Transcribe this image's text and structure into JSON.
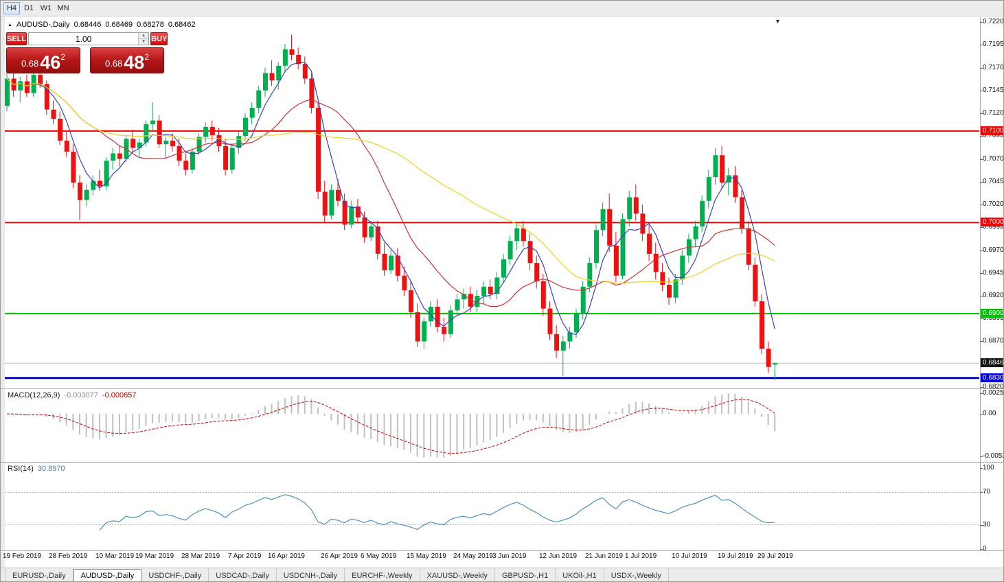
{
  "toolbar": {
    "periods": [
      {
        "label": "H4",
        "active": true
      },
      {
        "label": "D1",
        "active": false
      },
      {
        "label": "W1",
        "active": false
      },
      {
        "label": "MN",
        "active": false
      }
    ]
  },
  "icons": {
    "title_bullet": "▲",
    "spinner_up": "▲",
    "spinner_down": "▼",
    "shift_marker": "▼"
  },
  "chart_header": {
    "symbol": "AUDUSD-,Daily",
    "open": "0.68446",
    "high": "0.68469",
    "low": "0.68278",
    "close": "0.68462"
  },
  "trade_panel": {
    "sell_label": "SELL",
    "buy_label": "BUY",
    "volume": "1.00",
    "sell_price": {
      "prefix": "0.68",
      "big": "46",
      "sup": "2"
    },
    "buy_price": {
      "prefix": "0.68",
      "big": "48",
      "sup": "2"
    }
  },
  "chart_data": {
    "type": "candlestick",
    "title": "AUDUSD-,Daily",
    "colors": {
      "up": "#00b050",
      "down": "#ee1111",
      "bid_line": "#c0c0c0",
      "macd_hist": "#c0c0c0",
      "macd_signal": "#cc0000",
      "rsi_line": "#4a90c2",
      "level_dotted": "#b0b0b0"
    },
    "y_axis": {
      "top_price": 0.722,
      "bottom_price": 0.682,
      "tick_step": 0.0025,
      "ticks": [
        "0.72200",
        "0.71950",
        "0.71700",
        "0.71450",
        "0.71200",
        "0.70950",
        "0.70700",
        "0.70450",
        "0.70200",
        "0.69950",
        "0.69700",
        "0.69450",
        "0.69200",
        "0.68950",
        "0.68700",
        "0.68200"
      ]
    },
    "x_labels": [
      {
        "text": "19 Feb 2019",
        "i": 0
      },
      {
        "text": "28 Feb 2019",
        "i": 7
      },
      {
        "text": "10 Mar 2019",
        "i": 14
      },
      {
        "text": "19 Mar 2019",
        "i": 20
      },
      {
        "text": "28 Mar 2019",
        "i": 27
      },
      {
        "text": "7 Apr 2019",
        "i": 34
      },
      {
        "text": "16 Apr 2019",
        "i": 40
      },
      {
        "text": "26 Apr 2019",
        "i": 48
      },
      {
        "text": "6 May 2019",
        "i": 54
      },
      {
        "text": "15 May 2019",
        "i": 61
      },
      {
        "text": "24 May 2019",
        "i": 68
      },
      {
        "text": "3 Jun 2019",
        "i": 74
      },
      {
        "text": "12 Jun 2019",
        "i": 81
      },
      {
        "text": "21 Jun 2019",
        "i": 88
      },
      {
        "text": "1 Jul 2019",
        "i": 94
      },
      {
        "text": "10 Jul 2019",
        "i": 101
      },
      {
        "text": "19 Jul 2019",
        "i": 108
      },
      {
        "text": "29 Jul 2019",
        "i": 114
      }
    ],
    "candles": [
      [
        0.7128,
        0.7165,
        0.7122,
        0.7158
      ],
      [
        0.7158,
        0.7168,
        0.7138,
        0.7145
      ],
      [
        0.7145,
        0.716,
        0.7132,
        0.7155
      ],
      [
        0.7155,
        0.7162,
        0.7138,
        0.7142
      ],
      [
        0.7142,
        0.7166,
        0.7138,
        0.7162
      ],
      [
        0.7162,
        0.7168,
        0.7148,
        0.7152
      ],
      [
        0.7152,
        0.7156,
        0.7118,
        0.7124
      ],
      [
        0.7124,
        0.7134,
        0.7108,
        0.7114
      ],
      [
        0.7114,
        0.7122,
        0.7085,
        0.709
      ],
      [
        0.709,
        0.71,
        0.7072,
        0.7078
      ],
      [
        0.7078,
        0.7086,
        0.7038,
        0.7044
      ],
      [
        0.7044,
        0.7052,
        0.7003,
        0.7025
      ],
      [
        0.7025,
        0.7042,
        0.7018,
        0.7036
      ],
      [
        0.7036,
        0.7052,
        0.703,
        0.7046
      ],
      [
        0.7046,
        0.7058,
        0.7035,
        0.704
      ],
      [
        0.704,
        0.7072,
        0.7036,
        0.7068
      ],
      [
        0.7068,
        0.7082,
        0.7058,
        0.7076
      ],
      [
        0.7076,
        0.7084,
        0.7062,
        0.707
      ],
      [
        0.707,
        0.7096,
        0.7066,
        0.7092
      ],
      [
        0.7092,
        0.7102,
        0.7076,
        0.7082
      ],
      [
        0.7082,
        0.7092,
        0.7072,
        0.7088
      ],
      [
        0.7088,
        0.7112,
        0.7084,
        0.7108
      ],
      [
        0.7108,
        0.7132,
        0.71,
        0.7112
      ],
      [
        0.7112,
        0.7118,
        0.7082,
        0.7086
      ],
      [
        0.7086,
        0.7094,
        0.707,
        0.709
      ],
      [
        0.709,
        0.7098,
        0.7078,
        0.7084
      ],
      [
        0.7084,
        0.7092,
        0.7062,
        0.7068
      ],
      [
        0.7068,
        0.7076,
        0.7052,
        0.7058
      ],
      [
        0.7058,
        0.7082,
        0.7054,
        0.7078
      ],
      [
        0.7078,
        0.7098,
        0.7074,
        0.7094
      ],
      [
        0.7094,
        0.711,
        0.7088,
        0.7105
      ],
      [
        0.7105,
        0.7112,
        0.709,
        0.7096
      ],
      [
        0.7096,
        0.7104,
        0.7078,
        0.7084
      ],
      [
        0.7084,
        0.7092,
        0.7052,
        0.7058
      ],
      [
        0.7058,
        0.7086,
        0.7054,
        0.7082
      ],
      [
        0.7082,
        0.71,
        0.7076,
        0.7095
      ],
      [
        0.7095,
        0.712,
        0.709,
        0.7115
      ],
      [
        0.7115,
        0.7132,
        0.7108,
        0.7126
      ],
      [
        0.7126,
        0.715,
        0.712,
        0.7145
      ],
      [
        0.7145,
        0.717,
        0.7138,
        0.7164
      ],
      [
        0.7164,
        0.7178,
        0.715,
        0.7156
      ],
      [
        0.7156,
        0.7176,
        0.7146,
        0.7172
      ],
      [
        0.7172,
        0.7196,
        0.7165,
        0.719
      ],
      [
        0.719,
        0.7206,
        0.7178,
        0.7184
      ],
      [
        0.7184,
        0.7192,
        0.7168,
        0.7174
      ],
      [
        0.7174,
        0.7182,
        0.7152,
        0.7158
      ],
      [
        0.7158,
        0.7164,
        0.712,
        0.7126
      ],
      [
        0.7126,
        0.7132,
        0.7026,
        0.7034
      ],
      [
        0.7034,
        0.7046,
        0.7,
        0.7008
      ],
      [
        0.7008,
        0.7042,
        0.7004,
        0.7036
      ],
      [
        0.7036,
        0.7048,
        0.7018,
        0.7024
      ],
      [
        0.7024,
        0.7032,
        0.6992,
        0.6998
      ],
      [
        0.6998,
        0.7024,
        0.6994,
        0.7018
      ],
      [
        0.7018,
        0.7026,
        0.7,
        0.7006
      ],
      [
        0.7006,
        0.7012,
        0.6978,
        0.6984
      ],
      [
        0.6984,
        0.7002,
        0.698,
        0.6996
      ],
      [
        0.6996,
        0.7002,
        0.696,
        0.6966
      ],
      [
        0.6966,
        0.6978,
        0.6942,
        0.6948
      ],
      [
        0.6948,
        0.697,
        0.6944,
        0.6964
      ],
      [
        0.6964,
        0.6972,
        0.6936,
        0.6942
      ],
      [
        0.6942,
        0.6952,
        0.692,
        0.6926
      ],
      [
        0.6926,
        0.6936,
        0.6896,
        0.6902
      ],
      [
        0.6902,
        0.6912,
        0.6864,
        0.687
      ],
      [
        0.687,
        0.6896,
        0.6862,
        0.6892
      ],
      [
        0.6892,
        0.6914,
        0.6886,
        0.6908
      ],
      [
        0.6908,
        0.6916,
        0.688,
        0.6886
      ],
      [
        0.6886,
        0.6896,
        0.687,
        0.6878
      ],
      [
        0.6878,
        0.691,
        0.6874,
        0.6904
      ],
      [
        0.6904,
        0.6922,
        0.6898,
        0.6916
      ],
      [
        0.6916,
        0.6928,
        0.6906,
        0.6922
      ],
      [
        0.6922,
        0.693,
        0.6902,
        0.6908
      ],
      [
        0.6908,
        0.6926,
        0.6902,
        0.692
      ],
      [
        0.692,
        0.6936,
        0.6912,
        0.693
      ],
      [
        0.693,
        0.6938,
        0.6916,
        0.6922
      ],
      [
        0.6922,
        0.6946,
        0.6916,
        0.694
      ],
      [
        0.694,
        0.6966,
        0.6934,
        0.696
      ],
      [
        0.696,
        0.6986,
        0.6954,
        0.698
      ],
      [
        0.698,
        0.7,
        0.697,
        0.6994
      ],
      [
        0.6994,
        0.7002,
        0.6974,
        0.698
      ],
      [
        0.698,
        0.6988,
        0.6948,
        0.6956
      ],
      [
        0.6956,
        0.6964,
        0.6928,
        0.6936
      ],
      [
        0.6936,
        0.6944,
        0.6898,
        0.6906
      ],
      [
        0.6906,
        0.6914,
        0.6872,
        0.6878
      ],
      [
        0.6878,
        0.6888,
        0.6852,
        0.686
      ],
      [
        0.686,
        0.6876,
        0.6832,
        0.687
      ],
      [
        0.687,
        0.6886,
        0.6862,
        0.688
      ],
      [
        0.688,
        0.6906,
        0.6874,
        0.69
      ],
      [
        0.69,
        0.6936,
        0.6894,
        0.693
      ],
      [
        0.693,
        0.6962,
        0.6924,
        0.6956
      ],
      [
        0.6956,
        0.6998,
        0.695,
        0.6992
      ],
      [
        0.6992,
        0.7022,
        0.6985,
        0.7015
      ],
      [
        0.7015,
        0.7032,
        0.6968,
        0.6975
      ],
      [
        0.6975,
        0.699,
        0.6935,
        0.6942
      ],
      [
        0.6942,
        0.701,
        0.6938,
        0.7004
      ],
      [
        0.7004,
        0.7035,
        0.6996,
        0.7028
      ],
      [
        0.7028,
        0.7042,
        0.7002,
        0.701
      ],
      [
        0.701,
        0.702,
        0.698,
        0.6988
      ],
      [
        0.6988,
        0.6998,
        0.6958,
        0.6966
      ],
      [
        0.6966,
        0.6978,
        0.6938,
        0.6946
      ],
      [
        0.6946,
        0.6956,
        0.6925,
        0.6932
      ],
      [
        0.6932,
        0.694,
        0.691,
        0.6918
      ],
      [
        0.6918,
        0.6944,
        0.6912,
        0.6938
      ],
      [
        0.6938,
        0.697,
        0.6932,
        0.6964
      ],
      [
        0.6964,
        0.6988,
        0.6956,
        0.6982
      ],
      [
        0.6982,
        0.7002,
        0.6974,
        0.6996
      ],
      [
        0.6996,
        0.703,
        0.699,
        0.7024
      ],
      [
        0.7024,
        0.7058,
        0.7016,
        0.705
      ],
      [
        0.705,
        0.7082,
        0.7042,
        0.7074
      ],
      [
        0.7074,
        0.7084,
        0.7036,
        0.7044
      ],
      [
        0.7044,
        0.706,
        0.703,
        0.7052
      ],
      [
        0.7052,
        0.7062,
        0.7022,
        0.7028
      ],
      [
        0.7028,
        0.7036,
        0.6988,
        0.6994
      ],
      [
        0.6994,
        0.7002,
        0.6948,
        0.6954
      ],
      [
        0.6954,
        0.6962,
        0.6908,
        0.6914
      ],
      [
        0.6914,
        0.6922,
        0.6856,
        0.6862
      ],
      [
        0.6862,
        0.687,
        0.6836,
        0.6842
      ],
      [
        0.68446,
        0.68469,
        0.68278,
        0.68462
      ]
    ],
    "moving_averages": [
      {
        "period": 5,
        "color": "#3344bb"
      },
      {
        "period": 15,
        "color": "#cc3333"
      },
      {
        "period": 40,
        "color": "#f0d020"
      }
    ],
    "hlines": [
      {
        "price": 0.71005,
        "label": "0.71005",
        "color": "#f00000",
        "width": 2
      },
      {
        "price": 0.70002,
        "label": "0.70002",
        "color": "#f00000",
        "width": 2
      },
      {
        "price": 0.69005,
        "label": "0.69005",
        "color": "#00c000",
        "width": 2
      },
      {
        "price": 0.683,
        "label": "0.68300",
        "color": "#0000e0",
        "width": 3
      }
    ],
    "bid": {
      "price": 0.68462,
      "label": "0.68462",
      "badge_color": "#111111"
    },
    "indicators": {
      "macd": {
        "label": "MACD(12,26,9)",
        "fast": 12,
        "slow": 26,
        "signal": 9,
        "main_value": "-0.003077",
        "signal_value": "-0.000657",
        "axis_labels": [
          "0.002522",
          "0.00",
          "-0.005234"
        ]
      },
      "rsi": {
        "label": "RSI(14)",
        "period": 14,
        "value": "30.8970",
        "levels": [
          70,
          30
        ],
        "axis_labels": [
          "100",
          "70",
          "30",
          "0"
        ]
      }
    }
  },
  "bottom_tabs": {
    "items": [
      "EURUSD-,Daily",
      "AUDUSD-,Daily",
      "USDCHF-,Daily",
      "USDCAD-,Daily",
      "USDCNH-,Daily",
      "EURCHF-,Weekly",
      "XAUUSD-,Weekly",
      "GBPUSD-,H1",
      "UKOil-,H1",
      "USDX-,Weekly"
    ],
    "active_index": 1
  }
}
